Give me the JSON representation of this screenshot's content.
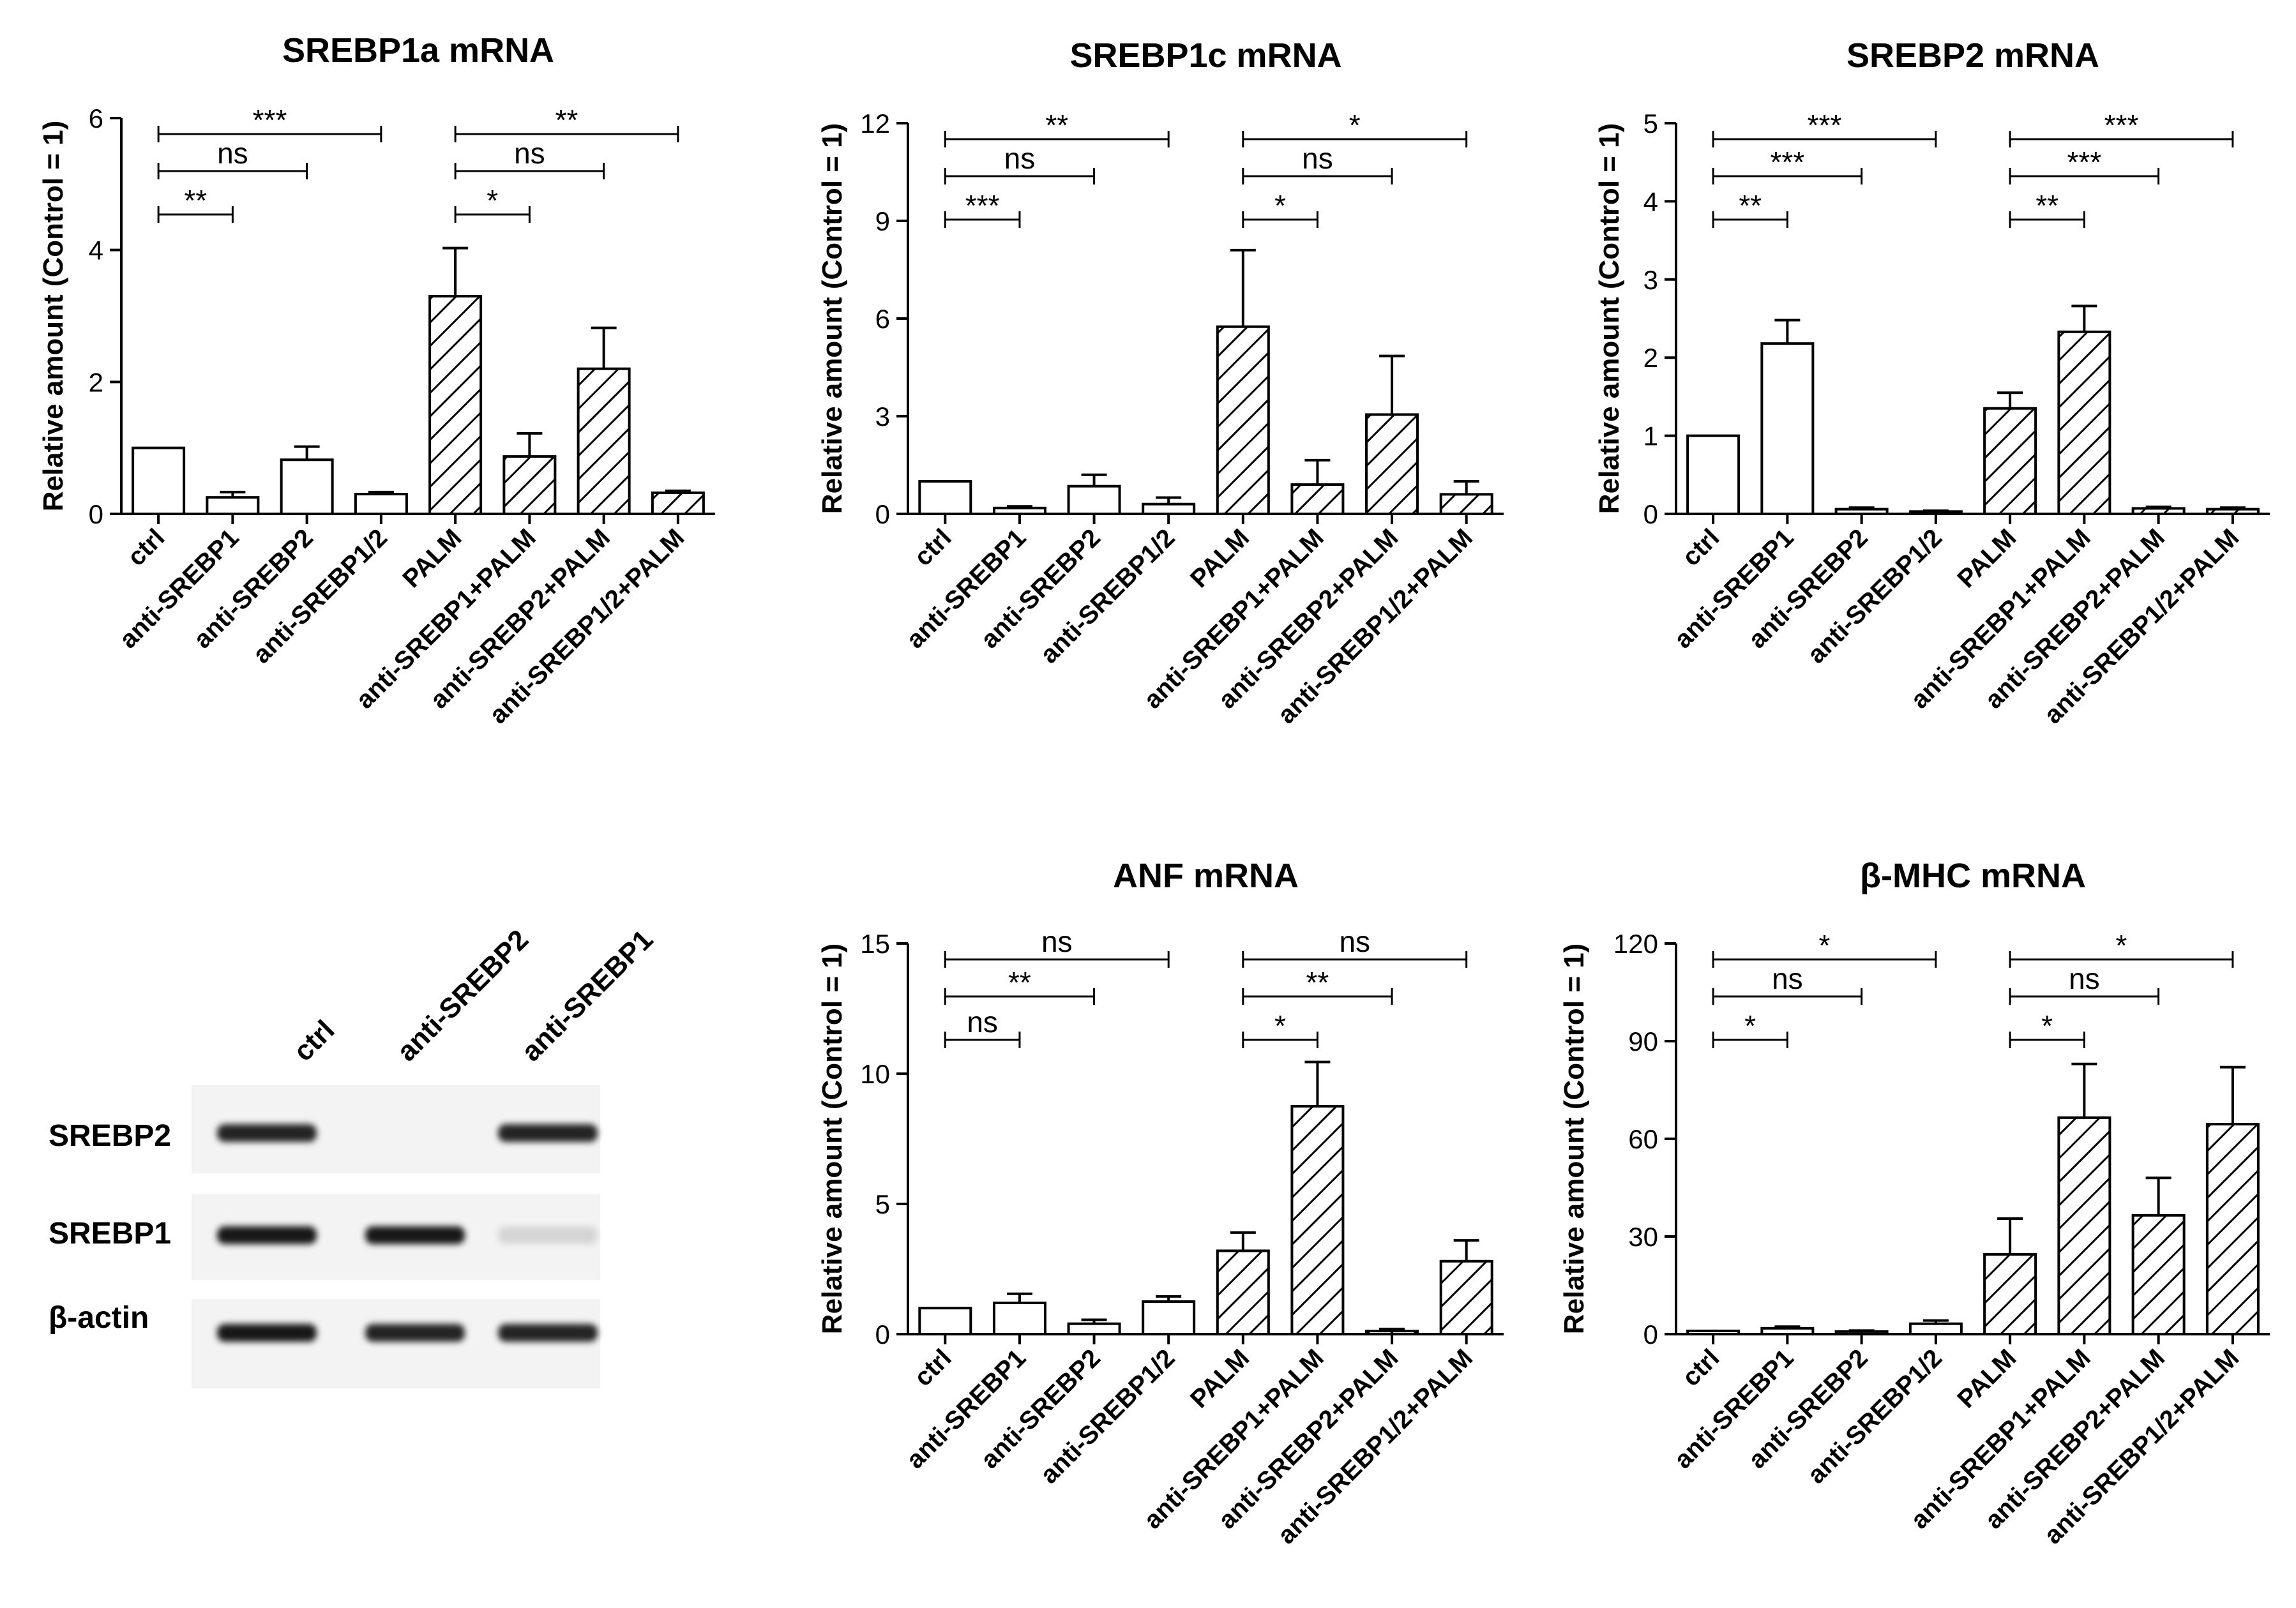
{
  "figure": {
    "western_blot": {
      "columns": [
        "ctrl",
        "anti-SREBP2",
        "anti-SREBP1"
      ],
      "rows": [
        {
          "label": "SREBP2",
          "intensity": [
            0.85,
            0.0,
            0.85
          ]
        },
        {
          "label": "SREBP1",
          "intensity": [
            0.9,
            0.9,
            0.12
          ]
        },
        {
          "label": "β-actin",
          "intensity": [
            0.9,
            0.85,
            0.85
          ]
        }
      ]
    }
  },
  "chart_data": [
    {
      "type": "bar",
      "title": "SREBP1a  mRNA",
      "xlabel": "",
      "ylabel": "Relative amount (Control = 1)",
      "ylim": [
        0,
        6
      ],
      "yticks": [
        0,
        2,
        4,
        6
      ],
      "categories": [
        "ctrl",
        "anti-SREBP1",
        "anti-SREBP2",
        "anti-SREBP1/2",
        "PALM",
        "anti-SREBP1+PALM",
        "anti-SREBP2+PALM",
        "anti-SREBP1/2+PALM"
      ],
      "values": [
        1.0,
        0.25,
        0.82,
        0.3,
        3.3,
        0.87,
        2.2,
        0.32
      ],
      "errors": [
        0,
        0.08,
        0.2,
        0.03,
        0.73,
        0.35,
        0.62,
        0.03
      ],
      "hatched": [
        false,
        false,
        false,
        false,
        true,
        true,
        true,
        true
      ],
      "significance": [
        {
          "from": 0,
          "to": 3,
          "label": "***",
          "level": 0
        },
        {
          "from": 0,
          "to": 2,
          "label": "ns",
          "level": 1
        },
        {
          "from": 0,
          "to": 1,
          "label": "**",
          "level": 2
        },
        {
          "from": 4,
          "to": 7,
          "label": "**",
          "level": 0
        },
        {
          "from": 4,
          "to": 6,
          "label": "ns",
          "level": 1
        },
        {
          "from": 4,
          "to": 5,
          "label": "*",
          "level": 2
        }
      ]
    },
    {
      "type": "bar",
      "title": "SREBP1c  mRNA",
      "xlabel": "",
      "ylabel": "Relative amount (Control = 1)",
      "ylim": [
        0,
        12
      ],
      "yticks": [
        0,
        3,
        6,
        9,
        12
      ],
      "categories": [
        "ctrl",
        "anti-SREBP1",
        "anti-SREBP2",
        "anti-SREBP1/2",
        "PALM",
        "anti-SREBP1+PALM",
        "anti-SREBP2+PALM",
        "anti-SREBP1/2+PALM"
      ],
      "values": [
        1.0,
        0.18,
        0.85,
        0.3,
        5.75,
        0.9,
        3.05,
        0.6
      ],
      "errors": [
        0,
        0.05,
        0.35,
        0.2,
        2.35,
        0.75,
        1.8,
        0.4
      ],
      "hatched": [
        false,
        false,
        false,
        false,
        true,
        true,
        true,
        true
      ],
      "significance": [
        {
          "from": 0,
          "to": 3,
          "label": "**",
          "level": 0
        },
        {
          "from": 0,
          "to": 2,
          "label": "ns",
          "level": 1
        },
        {
          "from": 0,
          "to": 1,
          "label": "***",
          "level": 2
        },
        {
          "from": 4,
          "to": 7,
          "label": "*",
          "level": 0
        },
        {
          "from": 4,
          "to": 6,
          "label": "ns",
          "level": 1
        },
        {
          "from": 4,
          "to": 5,
          "label": "*",
          "level": 2
        }
      ]
    },
    {
      "type": "bar",
      "title": "SREBP2  mRNA",
      "xlabel": "",
      "ylabel": "Relative amount (Control = 1)",
      "ylim": [
        0,
        5
      ],
      "yticks": [
        0,
        1,
        2,
        3,
        4,
        5
      ],
      "categories": [
        "ctrl",
        "anti-SREBP1",
        "anti-SREBP2",
        "anti-SREBP1/2",
        "PALM",
        "anti-SREBP1+PALM",
        "anti-SREBP2+PALM",
        "anti-SREBP1/2+PALM"
      ],
      "values": [
        1.0,
        2.18,
        0.06,
        0.03,
        1.35,
        2.33,
        0.07,
        0.06
      ],
      "errors": [
        0,
        0.3,
        0.02,
        0.01,
        0.2,
        0.33,
        0.02,
        0.02
      ],
      "hatched": [
        false,
        false,
        false,
        false,
        true,
        true,
        true,
        true
      ],
      "significance": [
        {
          "from": 0,
          "to": 3,
          "label": "***",
          "level": 0
        },
        {
          "from": 0,
          "to": 2,
          "label": "***",
          "level": 1
        },
        {
          "from": 0,
          "to": 1,
          "label": "**",
          "level": 2
        },
        {
          "from": 4,
          "to": 7,
          "label": "***",
          "level": 0
        },
        {
          "from": 4,
          "to": 6,
          "label": "***",
          "level": 1
        },
        {
          "from": 4,
          "to": 5,
          "label": "**",
          "level": 2
        }
      ]
    },
    {
      "type": "bar",
      "title": "ANF  mRNA",
      "xlabel": "",
      "ylabel": "Relative amount (Control = 1)",
      "ylim": [
        0,
        15
      ],
      "yticks": [
        0,
        5,
        10,
        15
      ],
      "categories": [
        "ctrl",
        "anti-SREBP1",
        "anti-SREBP2",
        "anti-SREBP1/2",
        "PALM",
        "anti-SREBP1+PALM",
        "anti-SREBP2+PALM",
        "anti-SREBP1/2+PALM"
      ],
      "values": [
        1.0,
        1.2,
        0.4,
        1.25,
        3.2,
        8.75,
        0.12,
        2.8
      ],
      "errors": [
        0,
        0.35,
        0.15,
        0.2,
        0.7,
        1.7,
        0.08,
        0.8
      ],
      "hatched": [
        false,
        false,
        false,
        false,
        true,
        true,
        true,
        true
      ],
      "significance": [
        {
          "from": 0,
          "to": 3,
          "label": "ns",
          "level": 0
        },
        {
          "from": 0,
          "to": 2,
          "label": "**",
          "level": 1
        },
        {
          "from": 0,
          "to": 1,
          "label": "ns",
          "level": 2
        },
        {
          "from": 4,
          "to": 7,
          "label": "ns",
          "level": 0
        },
        {
          "from": 4,
          "to": 6,
          "label": "**",
          "level": 1
        },
        {
          "from": 4,
          "to": 5,
          "label": "*",
          "level": 2
        }
      ]
    },
    {
      "type": "bar",
      "title": "β-MHC  mRNA",
      "xlabel": "",
      "ylabel": "Relative amount (Control = 1)",
      "ylim": [
        0,
        120
      ],
      "yticks": [
        0,
        30,
        60,
        90,
        120
      ],
      "categories": [
        "ctrl",
        "anti-SREBP1",
        "anti-SREBP2",
        "anti-SREBP1/2",
        "PALM",
        "anti-SREBP1+PALM",
        "anti-SREBP2+PALM",
        "anti-SREBP1/2+PALM"
      ],
      "values": [
        1.0,
        1.8,
        0.8,
        3.2,
        24.5,
        66.5,
        36.5,
        64.5
      ],
      "errors": [
        0,
        0.5,
        0.3,
        1.0,
        11.0,
        16.5,
        11.5,
        17.5
      ],
      "hatched": [
        false,
        false,
        false,
        false,
        true,
        true,
        true,
        true
      ],
      "significance": [
        {
          "from": 0,
          "to": 3,
          "label": "*",
          "level": 0
        },
        {
          "from": 0,
          "to": 2,
          "label": "ns",
          "level": 1
        },
        {
          "from": 0,
          "to": 1,
          "label": "*",
          "level": 2
        },
        {
          "from": 4,
          "to": 7,
          "label": "*",
          "level": 0
        },
        {
          "from": 4,
          "to": 6,
          "label": "ns",
          "level": 1
        },
        {
          "from": 4,
          "to": 5,
          "label": "*",
          "level": 2
        }
      ]
    }
  ]
}
